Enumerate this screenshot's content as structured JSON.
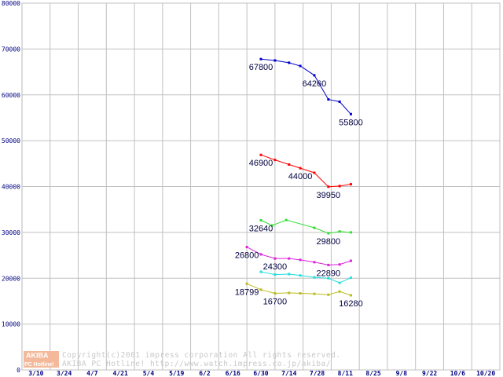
{
  "chart_data": {
    "type": "line",
    "x": [
      "3/10",
      "3/24",
      "4/7",
      "4/21",
      "5/4",
      "5/19",
      "6/2",
      "6/16",
      "6/30",
      "7/14",
      "7/28",
      "8/11",
      "8/25",
      "9/8",
      "9/22",
      "10/6",
      "10/20"
    ],
    "y_ticks": [
      "0",
      "10000",
      "20000",
      "30000",
      "40000",
      "50000",
      "60000",
      "70000",
      "80000"
    ],
    "ylim": [
      0,
      80000
    ],
    "grid": true,
    "series": [
      {
        "color": "#0000cc",
        "points": [
          [
            8.5,
            67800
          ],
          [
            9.0,
            67500
          ],
          [
            9.5,
            67000
          ],
          [
            9.9,
            66300
          ],
          [
            10.4,
            64260
          ],
          [
            10.9,
            59000
          ],
          [
            11.3,
            58500
          ],
          [
            11.7,
            55800
          ]
        ],
        "labels": [
          {
            "i": 0,
            "text": "67800",
            "pos": "below"
          },
          {
            "i": 4,
            "text": "64260",
            "pos": "below"
          },
          {
            "i": 7,
            "text": "55800",
            "pos": "below"
          }
        ]
      },
      {
        "color": "#ff0000",
        "points": [
          [
            8.5,
            46900
          ],
          [
            9.0,
            45800
          ],
          [
            9.5,
            44800
          ],
          [
            9.9,
            44000
          ],
          [
            10.4,
            43000
          ],
          [
            10.9,
            39950
          ],
          [
            11.3,
            40100
          ],
          [
            11.7,
            40500
          ]
        ],
        "labels": [
          {
            "i": 0,
            "text": "46900",
            "pos": "below"
          },
          {
            "i": 3,
            "text": "44000",
            "pos": "below"
          },
          {
            "i": 5,
            "text": "39950",
            "pos": "below"
          }
        ]
      },
      {
        "color": "#33dd33",
        "points": [
          [
            8.5,
            32640
          ],
          [
            8.9,
            31500
          ],
          [
            9.4,
            32700
          ],
          [
            10.4,
            31000
          ],
          [
            10.9,
            29800
          ],
          [
            11.3,
            30200
          ],
          [
            11.7,
            30000
          ]
        ],
        "labels": [
          {
            "i": 0,
            "text": "32640",
            "pos": "below"
          },
          {
            "i": 4,
            "text": "29800",
            "pos": "below"
          }
        ]
      },
      {
        "color": "#dd22dd",
        "points": [
          [
            8.0,
            26800
          ],
          [
            8.5,
            25200
          ],
          [
            9.0,
            24300
          ],
          [
            9.5,
            24300
          ],
          [
            9.9,
            24000
          ],
          [
            10.4,
            23500
          ],
          [
            10.9,
            22890
          ],
          [
            11.3,
            23000
          ],
          [
            11.7,
            23800
          ]
        ],
        "labels": [
          {
            "i": 0,
            "text": "26800",
            "pos": "below"
          },
          {
            "i": 2,
            "text": "24300",
            "pos": "below"
          },
          {
            "i": 6,
            "text": "22890",
            "pos": "below"
          }
        ]
      },
      {
        "color": "#22dddd",
        "points": [
          [
            8.5,
            21400
          ],
          [
            9.0,
            20800
          ],
          [
            9.5,
            20900
          ],
          [
            9.9,
            20600
          ],
          [
            10.4,
            20200
          ],
          [
            10.9,
            20000
          ],
          [
            11.3,
            19000
          ],
          [
            11.7,
            20100
          ]
        ],
        "labels": []
      },
      {
        "color": "#bbbb22",
        "points": [
          [
            8.0,
            18799
          ],
          [
            8.5,
            17500
          ],
          [
            9.0,
            16700
          ],
          [
            9.5,
            16800
          ],
          [
            9.9,
            16700
          ],
          [
            10.4,
            16600
          ],
          [
            10.9,
            16400
          ],
          [
            11.3,
            17100
          ],
          [
            11.7,
            16280
          ]
        ],
        "labels": [
          {
            "i": 0,
            "text": "18799",
            "pos": "below"
          },
          {
            "i": 2,
            "text": "16700",
            "pos": "below"
          },
          {
            "i": 8,
            "text": "16280",
            "pos": "below"
          }
        ]
      }
    ]
  },
  "footer": {
    "logo_top": "AKIBA",
    "logo_bottom": "PC Hotline!",
    "copyright_line1": "Copyright(c)2001 impress corporation All rights reserved.",
    "copyright_line2": "AKIBA PC Hotline!  http://www.watch.impress.co.jp/akiba/"
  }
}
